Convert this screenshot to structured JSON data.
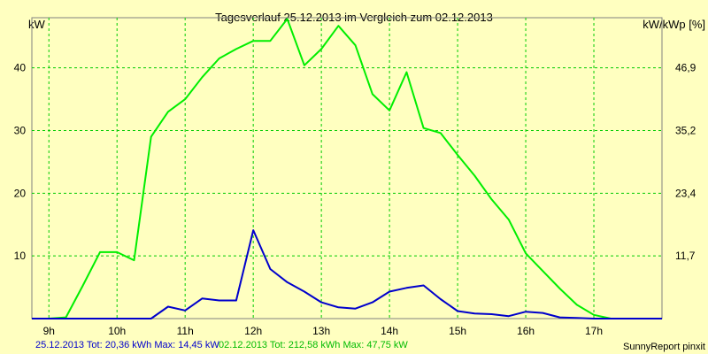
{
  "chart_data": {
    "type": "line",
    "title": "Tagesverlauf 25.12.2013 im Vergleich zum 02.12.2013",
    "left_unit": "kW",
    "right_unit": "kW/kWp [%]",
    "x_ticks": [
      "9h",
      "10h",
      "11h",
      "12h",
      "13h",
      "14h",
      "15h",
      "16h",
      "17h"
    ],
    "x_range": [
      8.75,
      18.0
    ],
    "y_left_ticks": [
      "10",
      "20",
      "30",
      "40"
    ],
    "y_left_values": [
      10,
      20,
      30,
      40
    ],
    "y_right_ticks": [
      "11,7",
      "23,4",
      "35,2",
      "46,9"
    ],
    "ylim": [
      0,
      48.0
    ],
    "grid": true,
    "colors": {
      "background": "#ffffc0",
      "grid": "#00cc00",
      "series1": "#0000cc",
      "series2": "#00ee00"
    },
    "series": [
      {
        "name": "25.12.2013",
        "color": "#0000cc",
        "x": [
          8.75,
          9.0,
          9.25,
          9.5,
          9.75,
          10.0,
          10.25,
          10.5,
          10.75,
          11.0,
          11.25,
          11.5,
          11.75,
          12.0,
          12.25,
          12.5,
          12.75,
          13.0,
          13.25,
          13.5,
          13.75,
          14.0,
          14.25,
          14.5,
          14.75,
          15.0,
          15.25,
          15.5,
          15.75,
          16.0,
          16.25,
          16.5,
          16.75,
          17.0,
          17.25,
          17.5,
          17.75,
          18.0
        ],
        "values": [
          0,
          0,
          0,
          0,
          0,
          0,
          0,
          0,
          1.9,
          1.3,
          3.2,
          2.9,
          2.9,
          14.1,
          7.9,
          5.8,
          4.3,
          2.6,
          1.8,
          1.6,
          2.6,
          4.3,
          4.9,
          5.3,
          3.1,
          1.2,
          0.8,
          0.7,
          0.4,
          1.1,
          0.9,
          0.2,
          0.1,
          0,
          0,
          0,
          0,
          0
        ]
      },
      {
        "name": "02.12.2013",
        "color": "#00ee00",
        "x": [
          8.75,
          9.0,
          9.25,
          9.5,
          9.75,
          10.0,
          10.25,
          10.5,
          10.75,
          11.0,
          11.25,
          11.5,
          11.75,
          12.0,
          12.25,
          12.5,
          12.75,
          13.0,
          13.25,
          13.5,
          13.75,
          14.0,
          14.25,
          14.5,
          14.75,
          15.0,
          15.25,
          15.5,
          15.75,
          16.0,
          16.25,
          16.5,
          16.75,
          17.0,
          17.25,
          17.5,
          17.75,
          18.0
        ],
        "values": [
          0,
          0,
          0.2,
          5.3,
          10.6,
          10.6,
          9.3,
          29.0,
          33.0,
          35.0,
          38.5,
          41.5,
          43.0,
          44.3,
          44.3,
          47.8,
          40.4,
          43.0,
          46.7,
          43.6,
          35.8,
          33.2,
          39.3,
          30.4,
          29.6,
          26.1,
          22.8,
          19.0,
          15.8,
          10.4,
          7.6,
          4.8,
          2.2,
          0.6,
          0,
          0,
          0,
          0
        ]
      }
    ]
  },
  "footer": {
    "series1_label": "25.12.2013 Tot: 20,36 kWh Max: 14,45 kW",
    "series2_label": "02.12.2013 Tot: 212,58 kWh Max: 47,75 kW",
    "brand": "SunnyReport pinxit"
  }
}
